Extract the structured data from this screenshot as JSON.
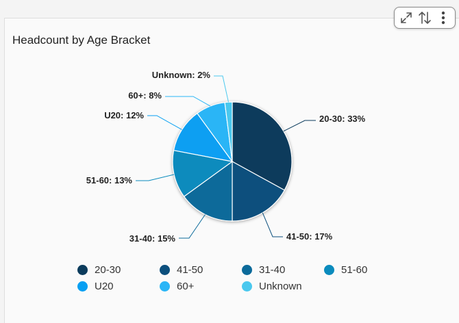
{
  "chart_data": {
    "type": "pie",
    "title": "Headcount by Age Bracket",
    "categories": [
      "20-30",
      "41-50",
      "31-40",
      "51-60",
      "U20",
      "60+",
      "Unknown"
    ],
    "values": [
      33,
      17,
      15,
      13,
      12,
      8,
      2
    ],
    "unit": "%",
    "data_labels": [
      "20-30: 33%",
      "41-50: 17%",
      "31-40: 15%",
      "51-60: 13%",
      "U20: 12%",
      "60+: 8%",
      "Unknown: 2%"
    ],
    "colors": [
      "#0b3b5c",
      "#0b4f7d",
      "#0b6a9a",
      "#0a8bbd",
      "#079ff2",
      "#2ab5f6",
      "#4ac8ee"
    ],
    "legend_position": "bottom",
    "grid": false
  },
  "toolbar": {
    "icons": [
      "expand-icon",
      "sort-icon",
      "more-vertical-icon"
    ]
  }
}
